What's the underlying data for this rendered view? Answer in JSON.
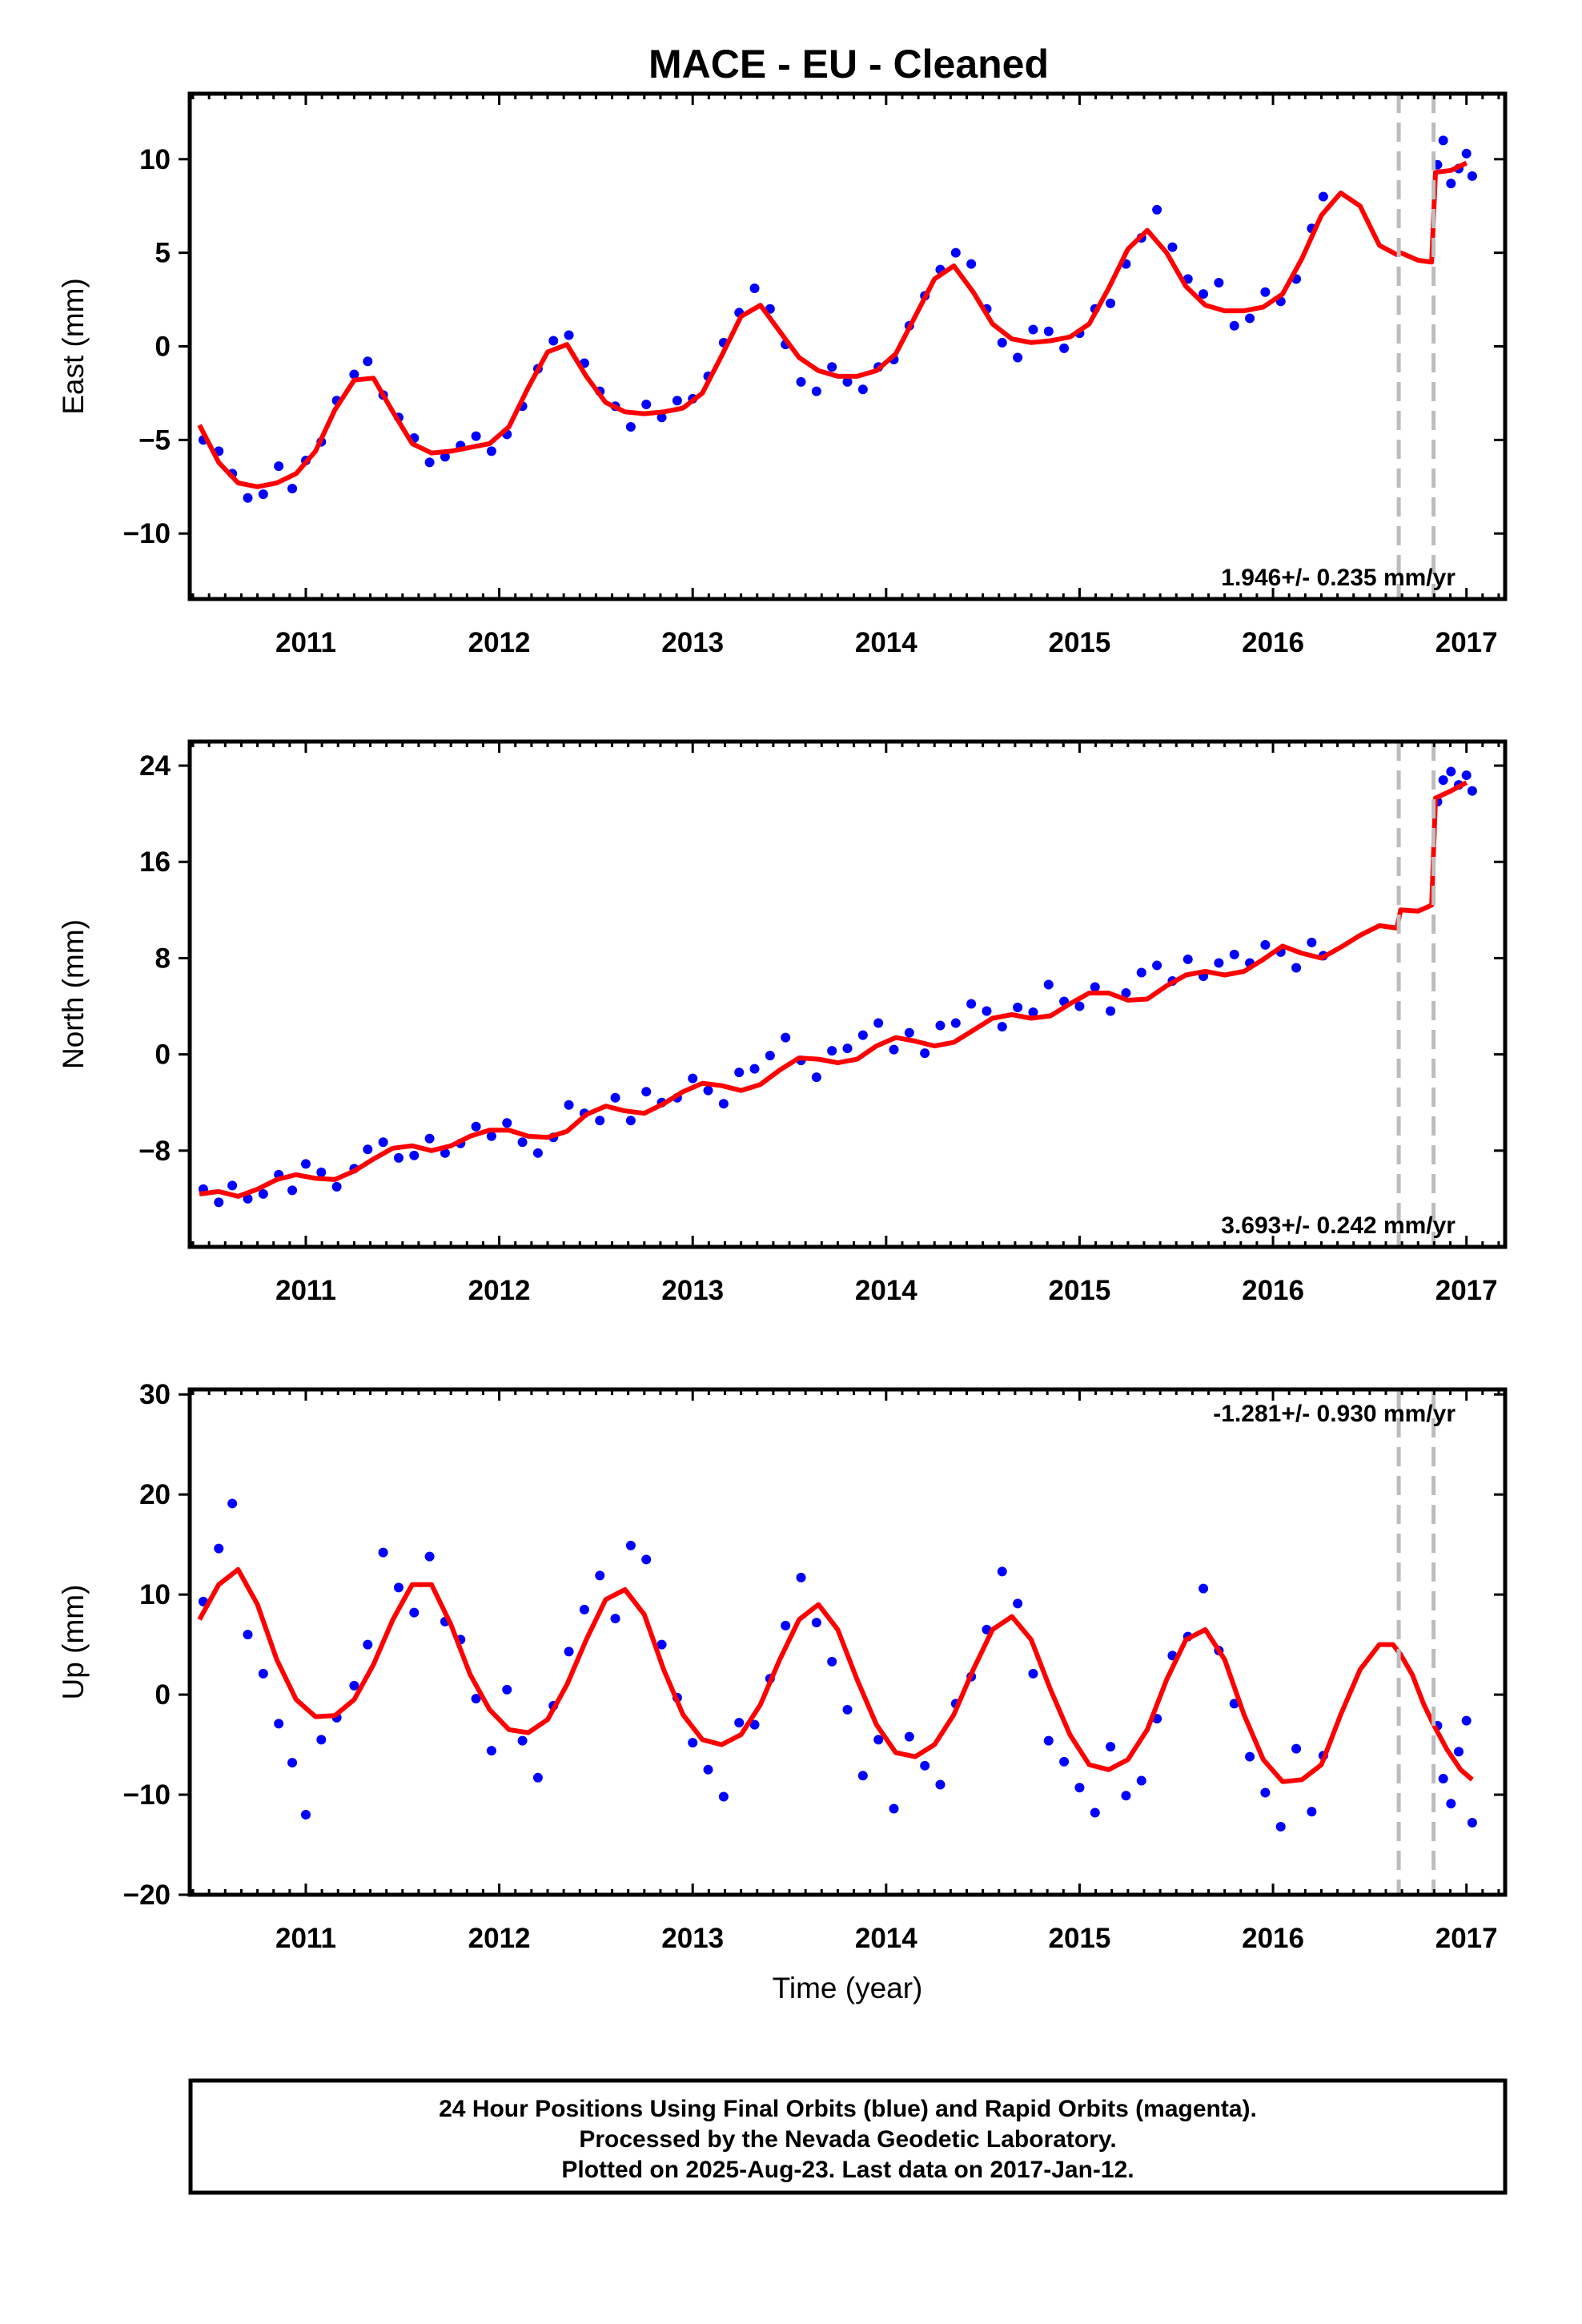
{
  "title": "MACE  - EU - Cleaned",
  "colors": {
    "data": "#0000ff",
    "model": "#ff0000",
    "offset_line": "#bdbdbd",
    "frame": "#000000"
  },
  "chart_data": [
    {
      "type": "scatter",
      "panel": "east",
      "ylabel": "East (mm)",
      "xlabel": "",
      "ylim": [
        -13.5,
        13.5
      ],
      "yticks": [
        -10,
        -5,
        0,
        5,
        10
      ],
      "xlim": [
        2010.4,
        2017.2
      ],
      "xticks": [
        2011,
        2012,
        2013,
        2014,
        2015,
        2016,
        2017
      ],
      "rate_text": "1.946+/- 0.235 mm/yr",
      "rate_position": "bottom-right",
      "offset_epochs": [
        2016.65,
        2016.83
      ],
      "model": {
        "x": [
          2010.45,
          2010.55,
          2010.65,
          2010.75,
          2010.85,
          2010.95,
          2011.05,
          2011.15,
          2011.25,
          2011.35,
          2011.45,
          2011.55,
          2011.65,
          2011.75,
          2011.85,
          2011.95,
          2012.05,
          2012.15,
          2012.25,
          2012.35,
          2012.45,
          2012.55,
          2012.65,
          2012.75,
          2012.85,
          2012.95,
          2013.05,
          2013.15,
          2013.25,
          2013.35,
          2013.45,
          2013.55,
          2013.65,
          2013.75,
          2013.85,
          2013.95,
          2014.05,
          2014.15,
          2014.25,
          2014.35,
          2014.45,
          2014.55,
          2014.65,
          2014.75,
          2014.85,
          2014.95,
          2015.05,
          2015.15,
          2015.25,
          2015.35,
          2015.45,
          2015.55,
          2015.65,
          2015.75,
          2015.85,
          2015.95,
          2016.05,
          2016.15,
          2016.25,
          2016.35,
          2016.45,
          2016.55,
          2016.64,
          2016.66,
          2016.75,
          2016.82,
          2016.84,
          2016.92,
          2017.0
        ],
        "y": [
          -4.2,
          -6.2,
          -7.3,
          -7.5,
          -7.3,
          -6.8,
          -5.6,
          -3.4,
          -1.8,
          -1.7,
          -3.5,
          -5.2,
          -5.7,
          -5.6,
          -5.4,
          -5.2,
          -4.3,
          -2.2,
          -0.3,
          0.1,
          -1.6,
          -3.0,
          -3.5,
          -3.6,
          -3.5,
          -3.3,
          -2.5,
          -0.5,
          1.6,
          2.2,
          0.8,
          -0.6,
          -1.3,
          -1.6,
          -1.6,
          -1.3,
          -0.4,
          1.6,
          3.6,
          4.3,
          2.9,
          1.2,
          0.4,
          0.2,
          0.3,
          0.5,
          1.2,
          3.1,
          5.2,
          6.2,
          5.0,
          3.2,
          2.2,
          1.9,
          1.9,
          2.1,
          2.8,
          4.7,
          7.0,
          8.2,
          7.5,
          5.4,
          4.9,
          5.0,
          4.6,
          4.5,
          9.3,
          9.4,
          9.8
        ]
      },
      "points": {
        "x": [
          2010.47,
          2010.55,
          2010.62,
          2010.7,
          2010.78,
          2010.86,
          2010.93,
          2011.0,
          2011.08,
          2011.16,
          2011.25,
          2011.32,
          2011.4,
          2011.48,
          2011.56,
          2011.64,
          2011.72,
          2011.8,
          2011.88,
          2011.96,
          2012.04,
          2012.12,
          2012.2,
          2012.28,
          2012.36,
          2012.44,
          2012.52,
          2012.6,
          2012.68,
          2012.76,
          2012.84,
          2012.92,
          2013.0,
          2013.08,
          2013.16,
          2013.24,
          2013.32,
          2013.4,
          2013.48,
          2013.56,
          2013.64,
          2013.72,
          2013.8,
          2013.88,
          2013.96,
          2014.04,
          2014.12,
          2014.2,
          2014.28,
          2014.36,
          2014.44,
          2014.52,
          2014.6,
          2014.68,
          2014.76,
          2014.84,
          2014.92,
          2015.0,
          2015.08,
          2015.16,
          2015.24,
          2015.32,
          2015.4,
          2015.48,
          2015.56,
          2015.64,
          2015.72,
          2015.8,
          2015.88,
          2015.96,
          2016.04,
          2016.12,
          2016.2,
          2016.26,
          2016.85,
          2016.88,
          2016.92,
          2016.96,
          2017.0,
          2017.03
        ],
        "y": [
          -5.0,
          -5.6,
          -6.8,
          -8.1,
          -7.9,
          -6.4,
          -7.6,
          -6.1,
          -5.1,
          -2.9,
          -1.5,
          -0.8,
          -2.6,
          -3.8,
          -4.9,
          -6.2,
          -5.9,
          -5.3,
          -4.8,
          -5.6,
          -4.7,
          -3.2,
          -1.2,
          0.3,
          0.6,
          -0.9,
          -2.4,
          -3.2,
          -4.3,
          -3.1,
          -3.8,
          -2.9,
          -2.8,
          -1.6,
          0.2,
          1.8,
          3.1,
          2.0,
          0.1,
          -1.9,
          -2.4,
          -1.1,
          -1.9,
          -2.3,
          -1.1,
          -0.7,
          1.1,
          2.7,
          4.1,
          5.0,
          4.4,
          2.0,
          0.2,
          -0.6,
          0.9,
          0.8,
          -0.1,
          0.7,
          2.0,
          2.3,
          4.4,
          5.8,
          7.3,
          5.3,
          3.6,
          2.8,
          3.4,
          1.1,
          1.5,
          2.9,
          2.4,
          3.6,
          6.3,
          8.0,
          9.7,
          11.0,
          8.7,
          9.5,
          10.3,
          9.1
        ]
      }
    },
    {
      "type": "scatter",
      "panel": "north",
      "ylabel": "North (mm)",
      "xlabel": "",
      "ylim": [
        -16,
        26
      ],
      "yticks": [
        -8,
        0,
        8,
        16,
        24
      ],
      "xlim": [
        2010.4,
        2017.2
      ],
      "xticks": [
        2011,
        2012,
        2013,
        2014,
        2015,
        2016,
        2017
      ],
      "rate_text": "3.693+/- 0.242 mm/yr",
      "rate_position": "bottom-right",
      "offset_epochs": [
        2016.65,
        2016.83
      ],
      "model": {
        "x": [
          2010.45,
          2010.55,
          2010.65,
          2010.75,
          2010.85,
          2010.95,
          2011.05,
          2011.15,
          2011.25,
          2011.35,
          2011.45,
          2011.55,
          2011.65,
          2011.75,
          2011.85,
          2011.95,
          2012.05,
          2012.15,
          2012.25,
          2012.35,
          2012.45,
          2012.55,
          2012.65,
          2012.75,
          2012.85,
          2012.95,
          2013.05,
          2013.15,
          2013.25,
          2013.35,
          2013.45,
          2013.55,
          2013.65,
          2013.75,
          2013.85,
          2013.95,
          2014.05,
          2014.15,
          2014.25,
          2014.35,
          2014.45,
          2014.55,
          2014.65,
          2014.75,
          2014.85,
          2014.95,
          2015.05,
          2015.15,
          2015.25,
          2015.35,
          2015.45,
          2015.55,
          2015.65,
          2015.75,
          2015.85,
          2015.95,
          2016.05,
          2016.15,
          2016.25,
          2016.35,
          2016.45,
          2016.55,
          2016.64,
          2016.66,
          2016.75,
          2016.82,
          2016.84,
          2016.92,
          2017.0
        ],
        "y": [
          -11.6,
          -11.4,
          -11.8,
          -11.2,
          -10.4,
          -10.0,
          -10.3,
          -10.4,
          -9.7,
          -8.7,
          -7.8,
          -7.6,
          -8.0,
          -7.6,
          -6.8,
          -6.3,
          -6.3,
          -6.8,
          -6.9,
          -6.4,
          -5.0,
          -4.3,
          -4.7,
          -4.9,
          -4.1,
          -3.1,
          -2.4,
          -2.6,
          -3.0,
          -2.5,
          -1.3,
          -0.3,
          -0.4,
          -0.7,
          -0.4,
          0.7,
          1.4,
          1.1,
          0.7,
          1.0,
          2.0,
          3.0,
          3.3,
          3.0,
          3.2,
          4.2,
          5.1,
          5.1,
          4.5,
          4.6,
          5.7,
          6.6,
          6.9,
          6.6,
          6.9,
          7.9,
          9.0,
          8.4,
          8.0,
          8.9,
          9.9,
          10.7,
          10.5,
          12.0,
          11.9,
          12.4,
          21.3,
          21.9,
          22.6
        ]
      },
      "points": {
        "x": [
          2010.47,
          2010.55,
          2010.62,
          2010.7,
          2010.78,
          2010.86,
          2010.93,
          2011.0,
          2011.08,
          2011.16,
          2011.25,
          2011.32,
          2011.4,
          2011.48,
          2011.56,
          2011.64,
          2011.72,
          2011.8,
          2011.88,
          2011.96,
          2012.04,
          2012.12,
          2012.2,
          2012.28,
          2012.36,
          2012.44,
          2012.52,
          2012.6,
          2012.68,
          2012.76,
          2012.84,
          2012.92,
          2013.0,
          2013.08,
          2013.16,
          2013.24,
          2013.32,
          2013.4,
          2013.48,
          2013.56,
          2013.64,
          2013.72,
          2013.8,
          2013.88,
          2013.96,
          2014.04,
          2014.12,
          2014.2,
          2014.28,
          2014.36,
          2014.44,
          2014.52,
          2014.6,
          2014.68,
          2014.76,
          2014.84,
          2014.92,
          2015.0,
          2015.08,
          2015.16,
          2015.24,
          2015.32,
          2015.4,
          2015.48,
          2015.56,
          2015.64,
          2015.72,
          2015.8,
          2015.88,
          2015.96,
          2016.04,
          2016.12,
          2016.2,
          2016.26,
          2016.85,
          2016.88,
          2016.92,
          2016.96,
          2017.0,
          2017.03
        ],
        "y": [
          -11.2,
          -12.3,
          -10.9,
          -12.0,
          -11.6,
          -10.0,
          -11.3,
          -9.1,
          -9.8,
          -11.0,
          -9.5,
          -7.9,
          -7.3,
          -8.6,
          -8.4,
          -7.0,
          -8.2,
          -7.4,
          -6.0,
          -6.8,
          -5.7,
          -7.3,
          -8.2,
          -6.9,
          -4.2,
          -4.9,
          -5.5,
          -3.6,
          -5.5,
          -3.1,
          -4.0,
          -3.6,
          -2.0,
          -3.0,
          -4.1,
          -1.5,
          -1.2,
          -0.1,
          1.4,
          -0.5,
          -1.9,
          0.3,
          0.5,
          1.6,
          2.6,
          0.4,
          1.8,
          0.1,
          2.4,
          2.6,
          4.2,
          3.6,
          2.3,
          3.9,
          3.5,
          5.8,
          4.4,
          4.0,
          5.6,
          3.6,
          5.1,
          6.8,
          7.4,
          6.1,
          7.9,
          6.5,
          7.6,
          8.3,
          7.6,
          9.1,
          8.5,
          7.2,
          9.3,
          8.2,
          21.0,
          22.8,
          23.5,
          22.4,
          23.2,
          21.9
        ]
      }
    },
    {
      "type": "scatter",
      "panel": "up",
      "ylabel": "Up (mm)",
      "xlabel": "Time (year)",
      "ylim": [
        -20,
        30.5
      ],
      "yticks": [
        -20,
        -10,
        0,
        10,
        20,
        30
      ],
      "xlim": [
        2010.4,
        2017.2
      ],
      "xticks": [
        2011,
        2012,
        2013,
        2014,
        2015,
        2016,
        2017
      ],
      "rate_text": "-1.281+/- 0.930 mm/yr",
      "rate_position": "top-right",
      "offset_epochs": [
        2016.65,
        2016.83
      ],
      "model": {
        "x": [
          2010.45,
          2010.55,
          2010.65,
          2010.75,
          2010.85,
          2010.95,
          2011.05,
          2011.15,
          2011.25,
          2011.35,
          2011.45,
          2011.55,
          2011.65,
          2011.75,
          2011.85,
          2011.95,
          2012.05,
          2012.15,
          2012.25,
          2012.35,
          2012.45,
          2012.55,
          2012.65,
          2012.75,
          2012.85,
          2012.95,
          2013.05,
          2013.15,
          2013.25,
          2013.35,
          2013.45,
          2013.55,
          2013.65,
          2013.75,
          2013.85,
          2013.95,
          2014.05,
          2014.15,
          2014.25,
          2014.35,
          2014.45,
          2014.55,
          2014.65,
          2014.75,
          2014.85,
          2014.95,
          2015.05,
          2015.15,
          2015.25,
          2015.35,
          2015.45,
          2015.55,
          2015.65,
          2015.75,
          2015.85,
          2015.95,
          2016.05,
          2016.15,
          2016.25,
          2016.35,
          2016.45,
          2016.55,
          2016.62,
          2016.66,
          2016.72,
          2016.78,
          2016.83,
          2016.9,
          2016.97,
          2017.03
        ],
        "y": [
          7.5,
          11.0,
          12.5,
          9.0,
          3.5,
          -0.5,
          -2.2,
          -2.1,
          -0.5,
          3.0,
          7.5,
          11.0,
          11.0,
          7.0,
          2.0,
          -1.5,
          -3.5,
          -3.8,
          -2.5,
          1.0,
          5.5,
          9.5,
          10.5,
          8.0,
          2.5,
          -2.0,
          -4.5,
          -5.0,
          -4.0,
          -1.0,
          3.5,
          7.5,
          9.0,
          6.5,
          1.5,
          -3.0,
          -5.8,
          -6.2,
          -5.0,
          -2.0,
          2.5,
          6.5,
          7.8,
          5.5,
          0.5,
          -4.0,
          -7.0,
          -7.5,
          -6.5,
          -3.5,
          1.5,
          5.5,
          6.5,
          3.5,
          -2.0,
          -6.5,
          -8.7,
          -8.5,
          -7.0,
          -2.0,
          2.5,
          5.0,
          5.0,
          4.0,
          2.0,
          -1.0,
          -3.0,
          -5.5,
          -7.5,
          -8.5
        ]
      },
      "points": {
        "x": [
          2010.47,
          2010.55,
          2010.62,
          2010.7,
          2010.78,
          2010.86,
          2010.93,
          2011.0,
          2011.08,
          2011.16,
          2011.25,
          2011.32,
          2011.4,
          2011.48,
          2011.56,
          2011.64,
          2011.72,
          2011.8,
          2011.88,
          2011.96,
          2012.04,
          2012.12,
          2012.2,
          2012.28,
          2012.36,
          2012.44,
          2012.52,
          2012.6,
          2012.68,
          2012.76,
          2012.84,
          2012.92,
          2013.0,
          2013.08,
          2013.16,
          2013.24,
          2013.32,
          2013.4,
          2013.48,
          2013.56,
          2013.64,
          2013.72,
          2013.8,
          2013.88,
          2013.96,
          2014.04,
          2014.12,
          2014.2,
          2014.28,
          2014.36,
          2014.44,
          2014.52,
          2014.6,
          2014.68,
          2014.76,
          2014.84,
          2014.92,
          2015.0,
          2015.08,
          2015.16,
          2015.24,
          2015.32,
          2015.4,
          2015.48,
          2015.56,
          2015.64,
          2015.72,
          2015.8,
          2015.88,
          2015.96,
          2016.04,
          2016.12,
          2016.2,
          2016.26,
          2016.85,
          2016.88,
          2016.92,
          2016.96,
          2017.0,
          2017.03
        ],
        "y": [
          9.3,
          14.6,
          19.1,
          6.0,
          2.1,
          -2.9,
          -6.8,
          -12.0,
          -4.5,
          -2.3,
          0.9,
          5.0,
          14.2,
          10.7,
          8.2,
          13.8,
          7.3,
          5.5,
          -0.4,
          -5.6,
          0.5,
          -4.6,
          -8.3,
          -1.1,
          4.3,
          8.5,
          11.9,
          7.6,
          14.9,
          13.5,
          5.0,
          -0.3,
          -4.8,
          -7.5,
          -10.2,
          -2.8,
          -3.0,
          1.6,
          6.9,
          11.7,
          7.2,
          3.3,
          -1.5,
          -8.1,
          -4.5,
          -11.4,
          -4.2,
          -7.1,
          -9.0,
          -0.9,
          1.8,
          6.5,
          12.3,
          9.1,
          2.1,
          -4.6,
          -6.7,
          -9.3,
          -11.8,
          -5.2,
          -10.1,
          -8.6,
          -2.4,
          3.9,
          5.8,
          10.6,
          4.4,
          -0.9,
          -6.2,
          -9.8,
          -13.2,
          -5.4,
          -11.7,
          -6.1,
          -3.1,
          -8.4,
          -10.9,
          -5.7,
          -2.6,
          -12.8
        ]
      }
    }
  ],
  "footer": {
    "line1": "24 Hour Positions Using Final Orbits (blue) and Rapid Orbits (magenta).",
    "line2": "Processed by the Nevada Geodetic Laboratory.",
    "line3": "Plotted on 2025-Aug-23. Last data on 2017-Jan-12."
  }
}
